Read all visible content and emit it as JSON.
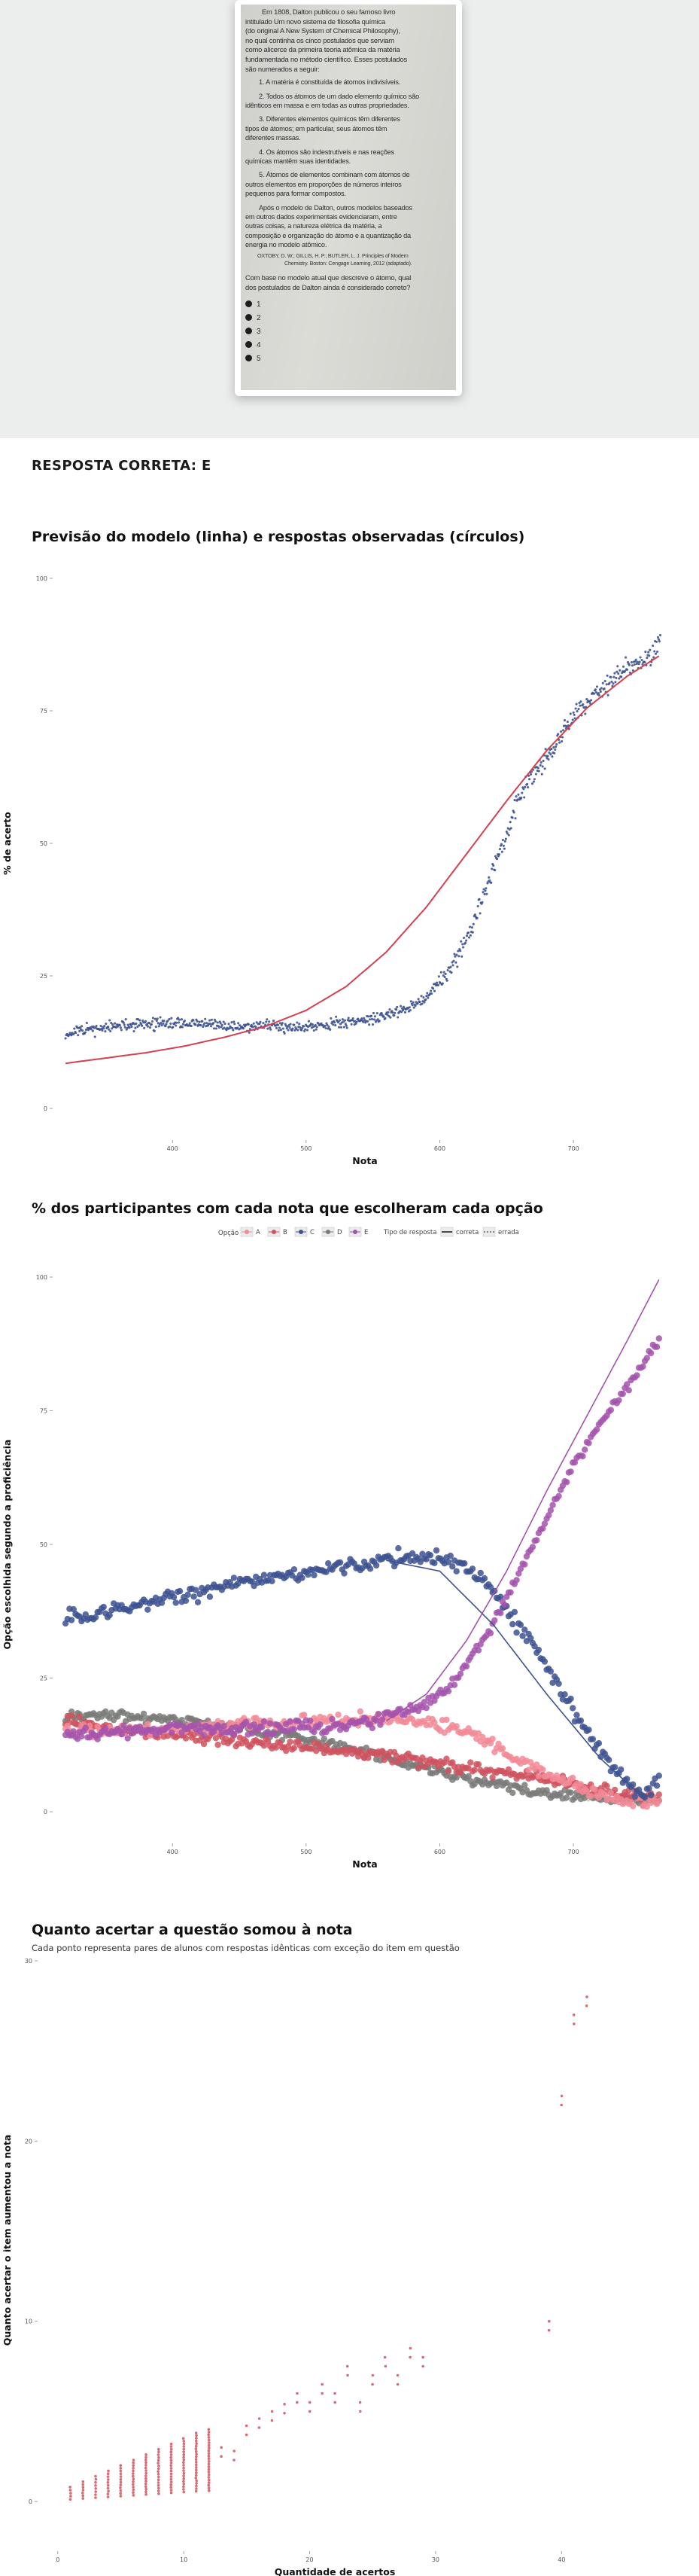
{
  "question": {
    "paragraphs": [
      "Em 1808, Dalton publicou o seu famoso livro",
      "intitulado Um novo sistema de filosofia química",
      "(do original A New System of Chemical Philosophy),",
      "no qual continha os cinco postulados que serviam",
      "como alicerce da primeira teoria atômica da matéria",
      "fundamentada no método científico. Esses postulados",
      "são numerados a seguir:"
    ],
    "postulates": [
      [
        "1. A matéria é constituída de átomos indivisíveis."
      ],
      [
        "2. Todos os átomos de um dado elemento químico são",
        "idênticos em massa e em todas as outras propriedades."
      ],
      [
        "3. Diferentes elementos químicos têm diferentes",
        "tipos de átomos; em particular, seus átomos têm",
        "diferentes massas."
      ],
      [
        "4. Os átomos são indestrutíveis e nas reações",
        "químicas mantêm suas identidades."
      ],
      [
        "5. Átomos de elementos combinam com átomos de",
        "outros elementos em proporções de números inteiros",
        "pequenos para formar compostos."
      ]
    ],
    "after_text": [
      "Após o modelo de Dalton, outros modelos baseados",
      "em outros dados experimentais evidenciaram, entre",
      "outras coisas, a natureza elétrica da matéria, a",
      "composição e organização do átomo e a quantização da",
      "energia no modelo atômico."
    ],
    "citation": [
      "OXTOBY, D. W.; GILLIS, H. P.; BUTLER, L. J. Principles of Modern",
      "Chemistry. Boston: Cengage Learning, 2012 (adaptado)."
    ],
    "prompt": [
      "Com base no modelo atual que descreve o átomo, qual",
      "dos postulados de Dalton ainda é considerado correto?"
    ],
    "options": [
      "1",
      "2",
      "3",
      "4",
      "5"
    ]
  },
  "answer_heading": "RESPOSTA CORRETA: E",
  "chart1": {
    "title": "Previsão do modelo (linha) e respostas observadas (círculos)"
  },
  "chart2": {
    "title": "% dos participantes com cada nota que escolheram cada opção"
  },
  "chart3": {
    "title": "Quanto acertar a questão somou à nota",
    "subtitle": "Cada ponto representa pares de alunos com respostas idênticas com exceção do item em questão"
  },
  "colors": {
    "blue": "#3d5291",
    "red": "#d0525f",
    "pink": "#f28a97",
    "gray": "#7a7a78",
    "purple": "#a453ad",
    "line_red": "#d4404f"
  },
  "chart_data": [
    {
      "type": "scatter",
      "title": "Previsão do modelo (linha) e respostas observadas (círculos)",
      "xlabel": "Nota",
      "ylabel": "% de acerto",
      "x_ticks": [
        400,
        500,
        600,
        700
      ],
      "y_ticks": [
        0,
        25,
        50,
        75,
        100
      ],
      "xlim": [
        316,
        772
      ],
      "ylim": [
        0,
        100
      ],
      "observed_points_description_free": true,
      "observed": {
        "x": [
          320,
          340,
          360,
          380,
          400,
          420,
          440,
          460,
          480,
          500,
          520,
          540,
          560,
          580,
          590,
          600,
          610,
          620,
          630,
          640,
          650,
          660,
          670,
          680,
          690,
          700,
          710,
          720,
          730,
          740,
          750,
          760,
          765
        ],
        "y": [
          14,
          15,
          15.5,
          16,
          16,
          16,
          15.5,
          15.5,
          15.5,
          15.5,
          16,
          16.5,
          17.5,
          19.5,
          21,
          24,
          27,
          32,
          38,
          45,
          52,
          59,
          63,
          66,
          70,
          74,
          77,
          79,
          81,
          83,
          84,
          86,
          89
        ]
      },
      "model": {
        "x": [
          320,
          350,
          380,
          410,
          440,
          470,
          500,
          530,
          560,
          590,
          620,
          650,
          680,
          710,
          740,
          765
        ],
        "y": [
          8.5,
          9.5,
          10.5,
          11.8,
          13.5,
          15.5,
          18.5,
          23,
          29.5,
          38,
          48,
          58,
          67.5,
          75.5,
          81.5,
          85.5
        ]
      },
      "line_color": "#d4404f",
      "point_color": "#3d5291",
      "grid": false
    },
    {
      "type": "scatter",
      "title": "% dos participantes com cada nota que escolheram cada opção",
      "xlabel": "Nota",
      "ylabel": "Opção escolhida segundo a proficiência",
      "x_ticks": [
        400,
        500,
        600,
        700
      ],
      "y_ticks": [
        0,
        25,
        50,
        75,
        100
      ],
      "xlim": [
        316,
        772
      ],
      "ylim": [
        0,
        100
      ],
      "legend": {
        "placement": "top-center",
        "option_title": "Opção",
        "option_labels": [
          "A",
          "B",
          "C",
          "D",
          "E"
        ],
        "type_title": "Tipo de resposta",
        "type_labels": [
          "correta",
          "errada"
        ]
      },
      "series": [
        {
          "name": "A",
          "color": "#f28a97",
          "x": [
            320,
            360,
            400,
            440,
            480,
            520,
            560,
            590,
            620,
            650,
            680,
            710,
            740,
            765
          ],
          "y": [
            15,
            15,
            15.5,
            16,
            16.5,
            17,
            17.5,
            17,
            15,
            11,
            7,
            4,
            2,
            2
          ]
        },
        {
          "name": "B",
          "color": "#d0525f",
          "x": [
            320,
            360,
            400,
            440,
            480,
            520,
            560,
            600,
            640,
            680,
            720,
            765
          ],
          "y": [
            17,
            15.5,
            14.5,
            13.5,
            12.5,
            11.5,
            10.5,
            9,
            7.5,
            6,
            4,
            2
          ]
        },
        {
          "name": "C",
          "color": "#3d5291",
          "x": [
            320,
            360,
            400,
            440,
            480,
            520,
            560,
            590,
            610,
            630,
            650,
            670,
            690,
            710,
            730,
            750,
            765
          ],
          "y": [
            36,
            38,
            40,
            42,
            44,
            45.5,
            47,
            48,
            47,
            44,
            38,
            31,
            23,
            15,
            8,
            3,
            6
          ]
        },
        {
          "name": "D",
          "color": "#7a7a78",
          "x": [
            320,
            360,
            400,
            440,
            480,
            520,
            560,
            600,
            640,
            680,
            720,
            765
          ],
          "y": [
            18,
            18,
            17,
            16,
            14.5,
            12.5,
            10,
            7.5,
            5,
            3.5,
            2.5,
            2
          ]
        },
        {
          "name": "E",
          "color": "#a453ad",
          "x": [
            320,
            360,
            400,
            440,
            480,
            520,
            560,
            590,
            610,
            630,
            650,
            670,
            690,
            710,
            730,
            750,
            765
          ],
          "y": [
            14,
            15,
            15.5,
            15.5,
            15.5,
            16,
            17.5,
            20,
            24,
            31,
            40,
            50,
            60,
            69,
            76,
            83,
            89
          ]
        }
      ],
      "fitted": [
        {
          "name": "C",
          "color": "#3d5291",
          "x": [
            560,
            600,
            640,
            680,
            720,
            755
          ],
          "y": [
            47,
            45,
            35,
            22,
            10,
            2
          ]
        },
        {
          "name": "E",
          "color": "#a453ad",
          "x": [
            560,
            590,
            620,
            650,
            680,
            710,
            740,
            765
          ],
          "y": [
            17,
            22,
            32,
            45,
            60,
            74,
            88,
            100
          ]
        }
      ],
      "grid": false
    },
    {
      "type": "scatter",
      "title": "Quanto acertar a questão somou à nota",
      "subtitle": "Cada ponto representa pares de alunos com respostas idênticas com exceção do item em questão",
      "xlabel": "Quantidade de acertos",
      "ylabel": "Quanto acertar o item aumentou a nota",
      "x_ticks": [
        0,
        10,
        20,
        30,
        40
      ],
      "y_ticks": [
        0,
        10,
        20,
        30
      ],
      "xlim": [
        -1,
        45
      ],
      "ylim": [
        -1,
        30
      ],
      "color": "#d0525f",
      "points": {
        "x": [
          1,
          2,
          3,
          4,
          5,
          6,
          7,
          8,
          9,
          10,
          11,
          12,
          13,
          14,
          15,
          16,
          17,
          18,
          19,
          20,
          21,
          22,
          23,
          24,
          25,
          26,
          27,
          28,
          29,
          39,
          40,
          41,
          42
        ],
        "y": [
          0.8,
          1.1,
          1.4,
          1.7,
          2.0,
          2.3,
          2.6,
          2.9,
          3.2,
          3.5,
          3.8,
          4.0,
          3.0,
          2.8,
          4.2,
          4.6,
          5.0,
          5.4,
          6.0,
          5.5,
          6.5,
          6.0,
          7.5,
          5.5,
          7.0,
          8.0,
          7.0,
          8.5,
          8.0,
          10.0,
          22.5,
          27.0,
          28.0
        ]
      },
      "grid": false
    }
  ]
}
